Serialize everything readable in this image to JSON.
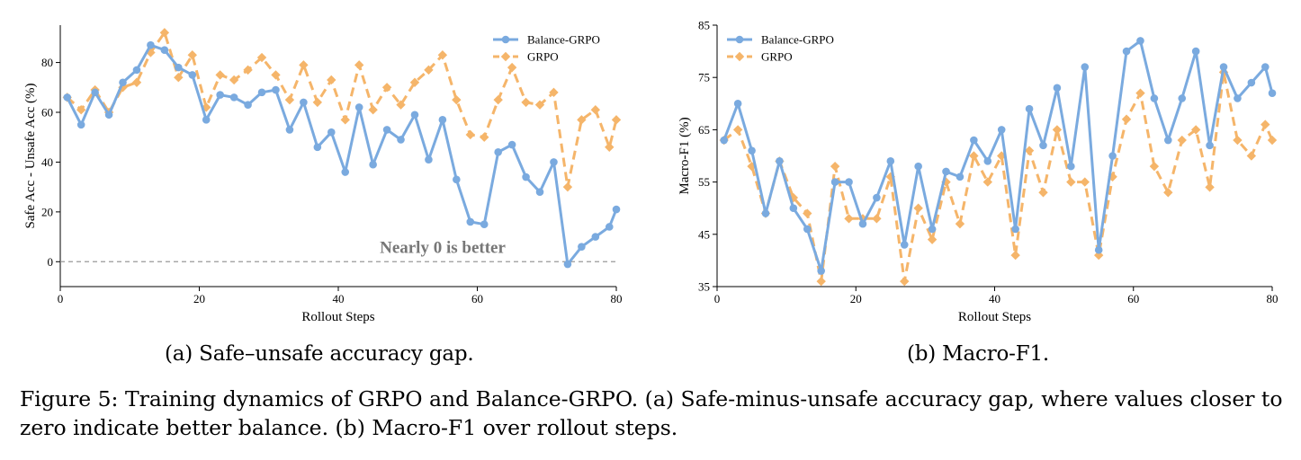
{
  "colors": {
    "balance": "#7aaadf",
    "grpo": "#f5b56a",
    "zero_line": "#999999",
    "annotation": "#777777"
  },
  "chart_data": [
    {
      "type": "line",
      "subcaption": "(a) Safe–unsafe accuracy gap.",
      "xlabel": "Rollout Steps",
      "ylabel": "Safe Acc - Unsafe Acc (%)",
      "xlim": [
        0,
        80
      ],
      "ylim": [
        -10,
        95
      ],
      "xticks": [
        "0",
        "20",
        "40",
        "60",
        "80"
      ],
      "yticks": [
        "0",
        "20",
        "40",
        "60",
        "80"
      ],
      "grid": false,
      "legend_position": "top-right",
      "annotation": "Nearly 0 is better",
      "reference_line": 0,
      "x": [
        1,
        3,
        5,
        7,
        9,
        11,
        13,
        15,
        17,
        19,
        21,
        23,
        25,
        27,
        29,
        31,
        33,
        35,
        37,
        39,
        41,
        43,
        45,
        47,
        49,
        51,
        53,
        55,
        57,
        59,
        61,
        63,
        65,
        67,
        69,
        71,
        73,
        75,
        77,
        79,
        81
      ],
      "series": [
        {
          "name": "Balance-GRPO",
          "color": "#7aaadf",
          "style": "solid",
          "marker": "circle",
          "values": [
            66,
            55,
            68,
            59,
            72,
            77,
            87,
            85,
            78,
            75,
            57,
            67,
            66,
            63,
            68,
            69,
            53,
            64,
            46,
            52,
            36,
            62,
            39,
            53,
            49,
            59,
            41,
            57,
            33,
            16,
            15,
            44,
            47,
            34,
            28,
            40,
            -1,
            6,
            10,
            14,
            21
          ]
        },
        {
          "name": "GRPO",
          "color": "#f5b56a",
          "style": "dashed",
          "marker": "diamond",
          "values": [
            66,
            61,
            69,
            60,
            70,
            72,
            84,
            92,
            74,
            83,
            62,
            75,
            73,
            77,
            82,
            75,
            65,
            79,
            64,
            73,
            57,
            79,
            61,
            70,
            63,
            72,
            77,
            83,
            65,
            51,
            50,
            65,
            78,
            64,
            63,
            68,
            30,
            57,
            61,
            46,
            57
          ]
        }
      ]
    },
    {
      "type": "line",
      "subcaption": "(b) Macro-F1.",
      "xlabel": "Rollout Steps",
      "ylabel": "Macro-F1 (%)",
      "xlim": [
        0,
        80
      ],
      "ylim": [
        35,
        85
      ],
      "xticks": [
        "0",
        "20",
        "40",
        "60",
        "80"
      ],
      "yticks": [
        "35",
        "45",
        "55",
        "65",
        "75",
        "85"
      ],
      "grid": false,
      "legend_position": "top-left",
      "x": [
        1,
        3,
        5,
        7,
        9,
        11,
        13,
        15,
        17,
        19,
        21,
        23,
        25,
        27,
        29,
        31,
        33,
        35,
        37,
        39,
        41,
        43,
        45,
        47,
        49,
        51,
        53,
        55,
        57,
        59,
        61,
        63,
        65,
        67,
        69,
        71,
        73,
        75,
        77,
        79,
        81
      ],
      "series": [
        {
          "name": "Balance-GRPO",
          "color": "#7aaadf",
          "style": "solid",
          "marker": "circle",
          "values": [
            63,
            70,
            61,
            49,
            59,
            50,
            46,
            38,
            55,
            55,
            47,
            52,
            59,
            43,
            58,
            46,
            57,
            56,
            63,
            59,
            65,
            46,
            69,
            62,
            73,
            58,
            77,
            42,
            60,
            80,
            82,
            71,
            63,
            71,
            80,
            62,
            77,
            71,
            74,
            77,
            72
          ]
        },
        {
          "name": "GRPO",
          "color": "#f5b56a",
          "style": "dashed",
          "marker": "diamond",
          "values": [
            63,
            65,
            58,
            49,
            59,
            52,
            49,
            36,
            58,
            48,
            48,
            48,
            56,
            36,
            50,
            44,
            55,
            47,
            60,
            55,
            60,
            41,
            61,
            53,
            65,
            55,
            55,
            41,
            56,
            67,
            72,
            58,
            53,
            63,
            65,
            54,
            76,
            63,
            60,
            66,
            63
          ]
        }
      ]
    }
  ],
  "caption": "Figure 5: Training dynamics of GRPO and Balance-GRPO. (a) Safe-minus-unsafe accuracy gap, where values closer to zero indicate better balance. (b) Macro-F1 over rollout steps."
}
